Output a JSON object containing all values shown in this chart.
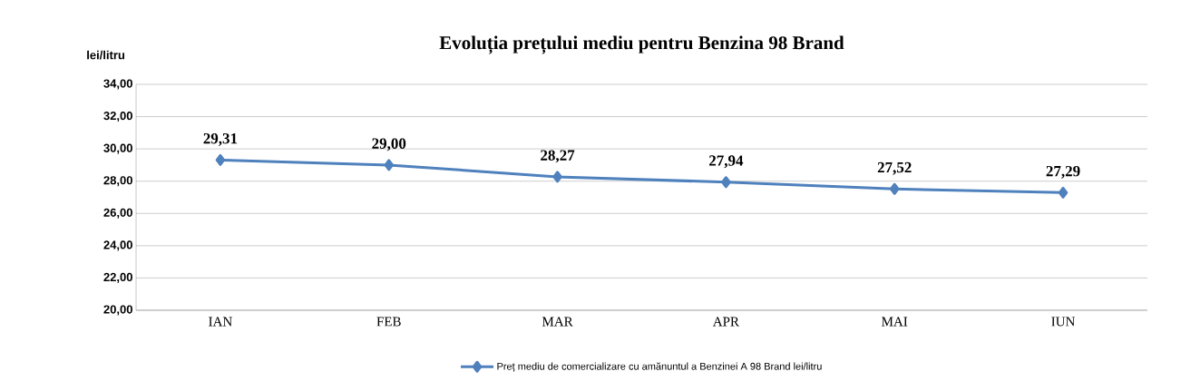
{
  "chart_data": {
    "type": "line",
    "title": "Evoluția prețului mediu pentru Benzina 98 Brand",
    "ylabel": "lei/litru",
    "categories": [
      "IAN",
      "FEB",
      "MAR",
      "APR",
      "MAI",
      "IUN"
    ],
    "series": [
      {
        "name": "Preț mediu de comercializare cu amănuntul a Benzinei A 98 Brand lei/litru",
        "color": "#4f81bd",
        "values": [
          29.31,
          29.0,
          28.27,
          27.94,
          27.52,
          27.29
        ],
        "value_labels": [
          "29,31",
          "29,00",
          "28,27",
          "27,94",
          "27,52",
          "27,29"
        ]
      }
    ],
    "ylim": [
      20,
      34
    ],
    "yticks": [
      {
        "value": 20,
        "label": "20,00"
      },
      {
        "value": 22,
        "label": "22,00"
      },
      {
        "value": 24,
        "label": "24,00"
      },
      {
        "value": 26,
        "label": "26,00"
      },
      {
        "value": 28,
        "label": "28,00"
      },
      {
        "value": 30,
        "label": "30,00"
      },
      {
        "value": 32,
        "label": "32,00"
      },
      {
        "value": 34,
        "label": "34,00"
      }
    ],
    "grid": "y",
    "legend": "bottom",
    "marker": "diamond",
    "line_style": "solid"
  }
}
